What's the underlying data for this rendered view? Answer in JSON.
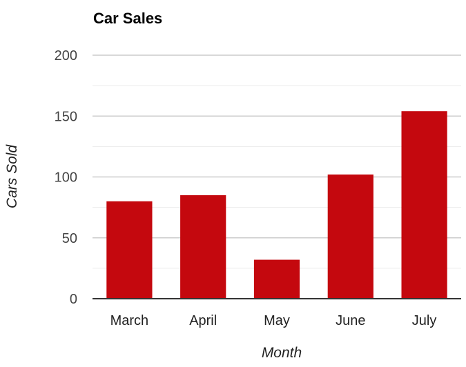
{
  "chart_data": {
    "type": "bar",
    "title": "Car Sales",
    "xlabel": "Month",
    "ylabel": "Cars Sold",
    "categories": [
      "March",
      "April",
      "May",
      "June",
      "July"
    ],
    "values": [
      80,
      85,
      32,
      102,
      154
    ],
    "ylim": [
      0,
      200
    ],
    "y_ticks": [
      "0",
      "50",
      "100",
      "150",
      "200"
    ],
    "grid": true,
    "colors": {
      "bar": "#c4080e",
      "major_grid": "#cccccc",
      "minor_grid": "#ebebeb",
      "axis": "#333333"
    }
  }
}
